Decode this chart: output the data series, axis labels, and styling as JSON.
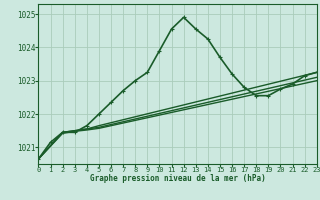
{
  "title": "Graphe pression niveau de la mer (hPa)",
  "bg_color": "#cce8df",
  "grid_color": "#aaccbb",
  "line_color": "#1a5c2a",
  "x_min": 0,
  "x_max": 23,
  "y_min": 1020.5,
  "y_max": 1025.3,
  "yticks": [
    1021,
    1022,
    1023,
    1024,
    1025
  ],
  "xticks": [
    0,
    1,
    2,
    3,
    4,
    5,
    6,
    7,
    8,
    9,
    10,
    11,
    12,
    13,
    14,
    15,
    16,
    17,
    18,
    19,
    20,
    21,
    22,
    23
  ],
  "series": [
    {
      "x": [
        0,
        1,
        2,
        3,
        4,
        5,
        6,
        7,
        8,
        9,
        10,
        11,
        12,
        13,
        14,
        15,
        16,
        17,
        18,
        19,
        20,
        21,
        22,
        23
      ],
      "y": [
        1020.65,
        1021.15,
        1021.45,
        1021.45,
        1021.65,
        1022.0,
        1022.35,
        1022.7,
        1023.0,
        1023.25,
        1023.9,
        1024.55,
        1024.9,
        1024.55,
        1024.25,
        1023.7,
        1023.2,
        1022.8,
        1022.55,
        1022.55,
        1022.75,
        1022.9,
        1023.15,
        1023.25
      ],
      "lw": 1.2,
      "marker": "+"
    },
    {
      "x": [
        0,
        2,
        3,
        4,
        5,
        23
      ],
      "y": [
        1020.65,
        1021.45,
        1021.5,
        1021.55,
        1021.65,
        1023.25
      ],
      "lw": 1.0,
      "marker": null
    },
    {
      "x": [
        0,
        2,
        3,
        4,
        5,
        23
      ],
      "y": [
        1020.65,
        1021.45,
        1021.5,
        1021.55,
        1021.6,
        1023.1
      ],
      "lw": 1.0,
      "marker": null
    },
    {
      "x": [
        0,
        2,
        3,
        4,
        5,
        23
      ],
      "y": [
        1020.65,
        1021.42,
        1021.48,
        1021.52,
        1021.57,
        1023.0
      ],
      "lw": 1.0,
      "marker": null
    }
  ]
}
